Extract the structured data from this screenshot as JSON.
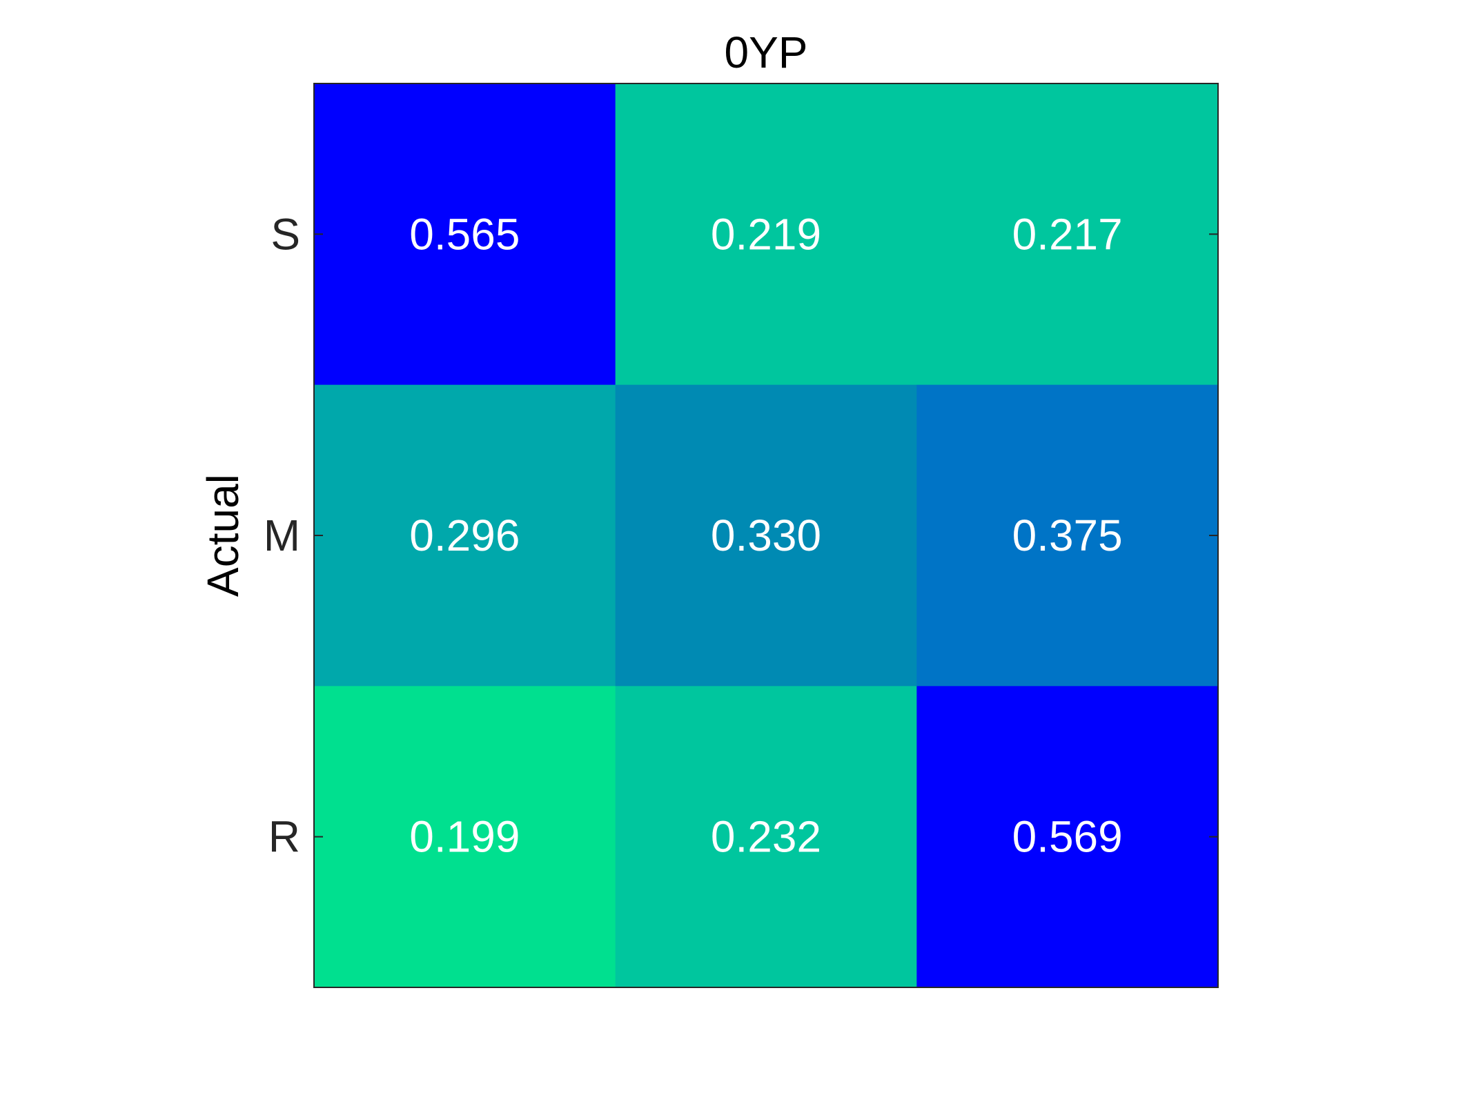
{
  "chart_data": {
    "type": "heatmap",
    "title": "0YP",
    "xlabel": "",
    "ylabel": "Actual",
    "rows": [
      "S",
      "M",
      "R"
    ],
    "columns": [],
    "values": [
      [
        0.565,
        0.219,
        0.217
      ],
      [
        0.296,
        0.33,
        0.375
      ],
      [
        0.199,
        0.232,
        0.569
      ]
    ],
    "labels": [
      [
        "0.565",
        "0.219",
        "0.217"
      ],
      [
        "0.296",
        "0.330",
        "0.375"
      ],
      [
        "0.199",
        "0.232",
        "0.569"
      ]
    ],
    "cell_colors": [
      [
        "#0000ff",
        "#00c69e",
        "#00c69e"
      ],
      [
        "#00a8ab",
        "#008ab3",
        "#0074c6"
      ],
      [
        "#00e08f",
        "#00c69e",
        "#0000ff"
      ]
    ],
    "value_text_color": "#ffffff",
    "grid": false,
    "legend": "none"
  }
}
